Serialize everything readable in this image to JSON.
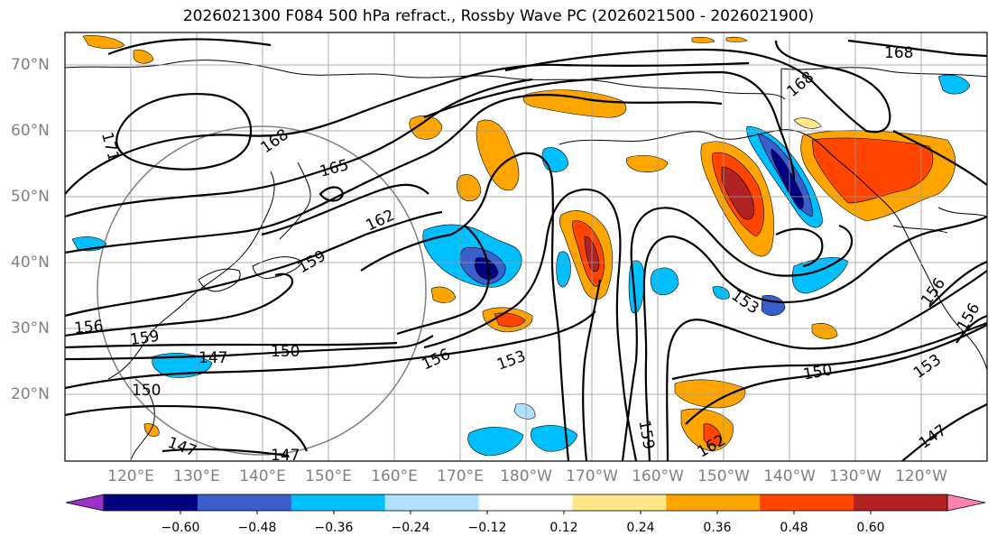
{
  "title": "2026021300 F084 500 hPa refract., Rossby Wave PC (2026021500 - 2026021900)",
  "lat_labels": [
    "70°N",
    "60°N",
    "50°N",
    "40°N",
    "30°N",
    "20°N"
  ],
  "lon_labels": [
    "120°E",
    "130°E",
    "140°E",
    "150°E",
    "160°E",
    "170°E",
    "180°W",
    "170°W",
    "160°W",
    "150°W",
    "140°W",
    "130°W",
    "120°W"
  ],
  "contour_labels": [
    "168",
    "168",
    "168",
    "171",
    "165",
    "162",
    "159",
    "156",
    "159",
    "147",
    "150",
    "150",
    "156",
    "153",
    "153",
    "150",
    "153",
    "156",
    "156",
    "159",
    "162",
    "147",
    "147",
    "147"
  ],
  "colorbar": {
    "tick_labels": [
      "−0.60",
      "−0.48",
      "−0.36",
      "−0.24",
      "−0.12",
      "0.12",
      "0.24",
      "0.36",
      "0.48",
      "0.60"
    ],
    "colors": [
      "#9932cc",
      "#000080",
      "#3a5fcd",
      "#00bfff",
      "#b0e2ff",
      "#ffffff",
      "#ffe88a",
      "#ffa500",
      "#ff4500",
      "#b22222",
      "#ff82ab"
    ]
  }
}
